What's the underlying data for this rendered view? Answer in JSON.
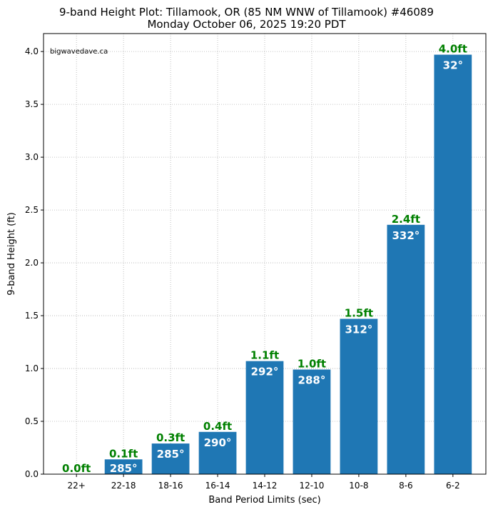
{
  "chart_data": {
    "type": "bar",
    "title": "9-band Height Plot: Tillamook, OR (85 NM WNW of Tillamook) #46089",
    "subtitle": "Monday October 06, 2025 19:20 PDT",
    "watermark": "bigwavedave.ca",
    "xlabel": "Band Period Limits (sec)",
    "ylabel": "9-band Height (ft)",
    "categories": [
      "22+",
      "22-18",
      "18-16",
      "16-14",
      "14-12",
      "12-10",
      "10-8",
      "8-6",
      "6-2"
    ],
    "values": [
      0.0,
      0.14,
      0.29,
      0.4,
      1.07,
      0.99,
      1.47,
      2.36,
      3.97
    ],
    "height_labels": [
      "0.0ft",
      "0.1ft",
      "0.3ft",
      "0.4ft",
      "1.1ft",
      "1.0ft",
      "1.5ft",
      "2.4ft",
      "4.0ft"
    ],
    "direction_labels": [
      "",
      "285°",
      "285°",
      "290°",
      "292°",
      "288°",
      "312°",
      "332°",
      "32°"
    ],
    "yticks": [
      "0.0",
      "0.5",
      "1.0",
      "1.5",
      "2.0",
      "2.5",
      "3.0",
      "3.5",
      "4.0"
    ],
    "ylim": [
      0,
      4.17
    ],
    "grid": true,
    "colors": {
      "bar": "#1f77b4",
      "height_label": "#008000",
      "direction_label": "#ffffff",
      "grid": "#b0b0b0"
    }
  }
}
